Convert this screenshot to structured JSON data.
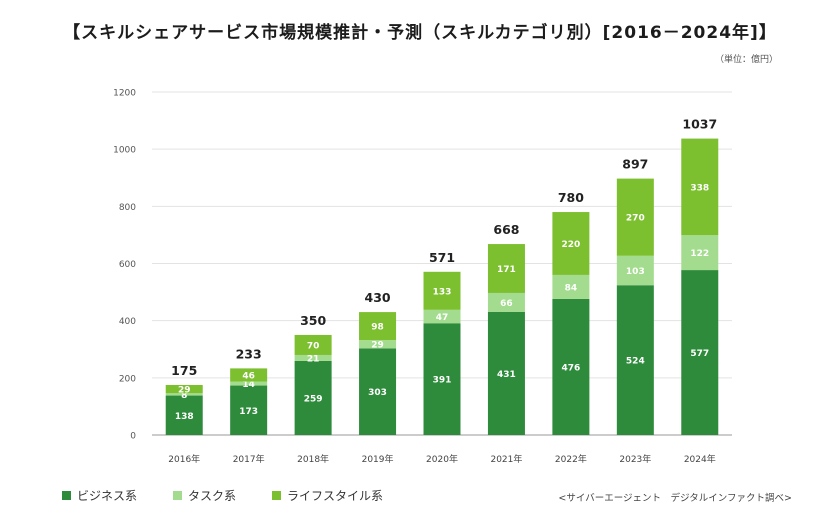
{
  "title": "【スキルシェアサービス市場規模推計・予測（スキルカテゴリ別）[2016－2024年]】",
  "unit_note": "（単位：億円）",
  "source_note": "<サイバーエージェント　デジタルインファクト調べ>",
  "colors": {
    "business": "#2e8b3c",
    "task": "#a3dc8e",
    "lifestyle": "#7cbf2f",
    "grid": "#e3e3e3",
    "axis": "#999999"
  },
  "legend": [
    {
      "name": "ビジネス系",
      "color": "#2e8b3c"
    },
    {
      "name": "タスク系",
      "color": "#a3dc8e"
    },
    {
      "name": "ライフスタイル系",
      "color": "#7cbf2f"
    }
  ],
  "chart_data": {
    "type": "bar",
    "stacked": true,
    "categories": [
      "2016年",
      "2017年",
      "2018年",
      "2019年",
      "2020年",
      "2021年",
      "2022年",
      "2023年",
      "2024年"
    ],
    "series": [
      {
        "name": "ビジネス系",
        "values": [
          138,
          173,
          259,
          303,
          391,
          431,
          476,
          524,
          577
        ]
      },
      {
        "name": "タスク系",
        "values": [
          8,
          14,
          21,
          29,
          47,
          66,
          84,
          103,
          122
        ]
      },
      {
        "name": "ライフスタイル系",
        "values": [
          29,
          46,
          70,
          98,
          133,
          171,
          220,
          270,
          338
        ]
      }
    ],
    "totals": [
      175,
      233,
      350,
      430,
      571,
      668,
      780,
      897,
      1037
    ],
    "ylim": [
      0,
      1200
    ],
    "yticks": [
      0,
      200,
      400,
      600,
      800,
      1000,
      1200
    ],
    "grid": true,
    "legend_position": "bottom-left"
  }
}
